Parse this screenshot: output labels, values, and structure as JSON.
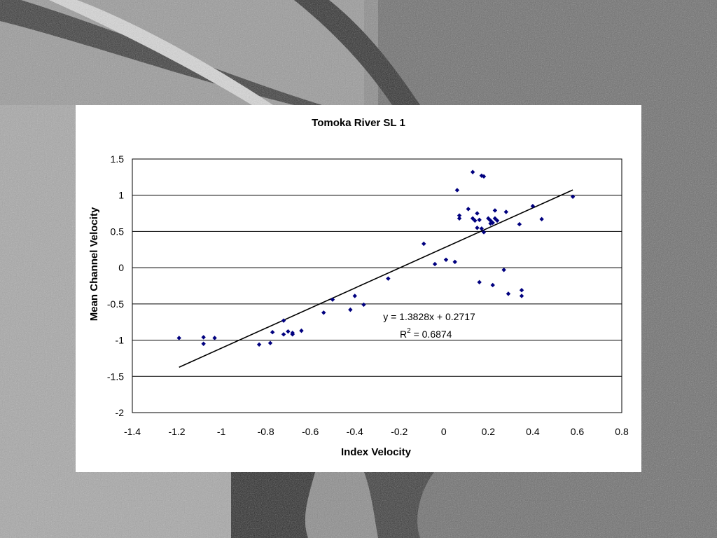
{
  "colors": {
    "marker": "#00007f",
    "trendline": "#000000",
    "gridline": "#000000",
    "panel": "#ffffff"
  },
  "chart_data": {
    "type": "scatter",
    "title": "Tomoka River SL 1",
    "xlabel": "Index Velocity",
    "ylabel": "Mean Channel Velocity",
    "xlim": [
      -1.4,
      0.8
    ],
    "ylim": [
      -2,
      1.5
    ],
    "xticks": [
      "-1.4",
      "-1.2",
      "-1",
      "-0.8",
      "-0.6",
      "-0.4",
      "-0.2",
      "0",
      "0.2",
      "0.4",
      "0.6",
      "0.8"
    ],
    "yticks": [
      "1.5",
      "1",
      "0.5",
      "0",
      "-0.5",
      "-1",
      "-1.5",
      "-2"
    ],
    "grid": "horizontal major gridlines",
    "legend": "none",
    "points": [
      [
        -1.19,
        -0.97
      ],
      [
        -1.08,
        -0.96
      ],
      [
        -1.08,
        -1.05
      ],
      [
        -1.03,
        -0.97
      ],
      [
        -0.83,
        -1.06
      ],
      [
        -0.78,
        -1.04
      ],
      [
        -0.77,
        -0.89
      ],
      [
        -0.72,
        -0.92
      ],
      [
        -0.72,
        -0.73
      ],
      [
        -0.7,
        -0.88
      ],
      [
        -0.68,
        -0.92
      ],
      [
        -0.68,
        -0.9
      ],
      [
        -0.64,
        -0.87
      ],
      [
        -0.54,
        -0.62
      ],
      [
        -0.5,
        -0.44
      ],
      [
        -0.42,
        -0.58
      ],
      [
        -0.4,
        -0.39
      ],
      [
        -0.36,
        -0.51
      ],
      [
        -0.25,
        -0.15
      ],
      [
        -0.09,
        0.33
      ],
      [
        -0.04,
        0.05
      ],
      [
        0.01,
        0.11
      ],
      [
        0.05,
        0.08
      ],
      [
        0.06,
        1.07
      ],
      [
        0.07,
        0.72
      ],
      [
        0.07,
        0.68
      ],
      [
        0.11,
        0.81
      ],
      [
        0.13,
        1.32
      ],
      [
        0.13,
        0.68
      ],
      [
        0.14,
        0.65
      ],
      [
        0.15,
        0.75
      ],
      [
        0.15,
        0.55
      ],
      [
        0.16,
        0.66
      ],
      [
        0.17,
        0.54
      ],
      [
        0.17,
        1.27
      ],
      [
        0.18,
        1.26
      ],
      [
        0.18,
        0.49
      ],
      [
        0.2,
        0.68
      ],
      [
        0.21,
        0.65
      ],
      [
        0.21,
        0.61
      ],
      [
        0.22,
        0.62
      ],
      [
        0.23,
        0.79
      ],
      [
        0.23,
        0.68
      ],
      [
        0.24,
        0.65
      ],
      [
        0.28,
        0.77
      ],
      [
        0.16,
        -0.2
      ],
      [
        0.22,
        -0.24
      ],
      [
        0.27,
        -0.03
      ],
      [
        0.29,
        -0.36
      ],
      [
        0.34,
        0.6
      ],
      [
        0.35,
        -0.31
      ],
      [
        0.35,
        -0.39
      ],
      [
        0.4,
        0.85
      ],
      [
        0.44,
        0.67
      ],
      [
        0.58,
        0.98
      ]
    ],
    "trendline": {
      "equation": "y = 1.3828x + 0.2717",
      "r2_prefix": "R",
      "r2_sup": "2",
      "r2_value": " = 0.6874",
      "slope": 1.3828,
      "intercept": 0.2717,
      "x_range": [
        -1.19,
        0.58
      ]
    }
  }
}
